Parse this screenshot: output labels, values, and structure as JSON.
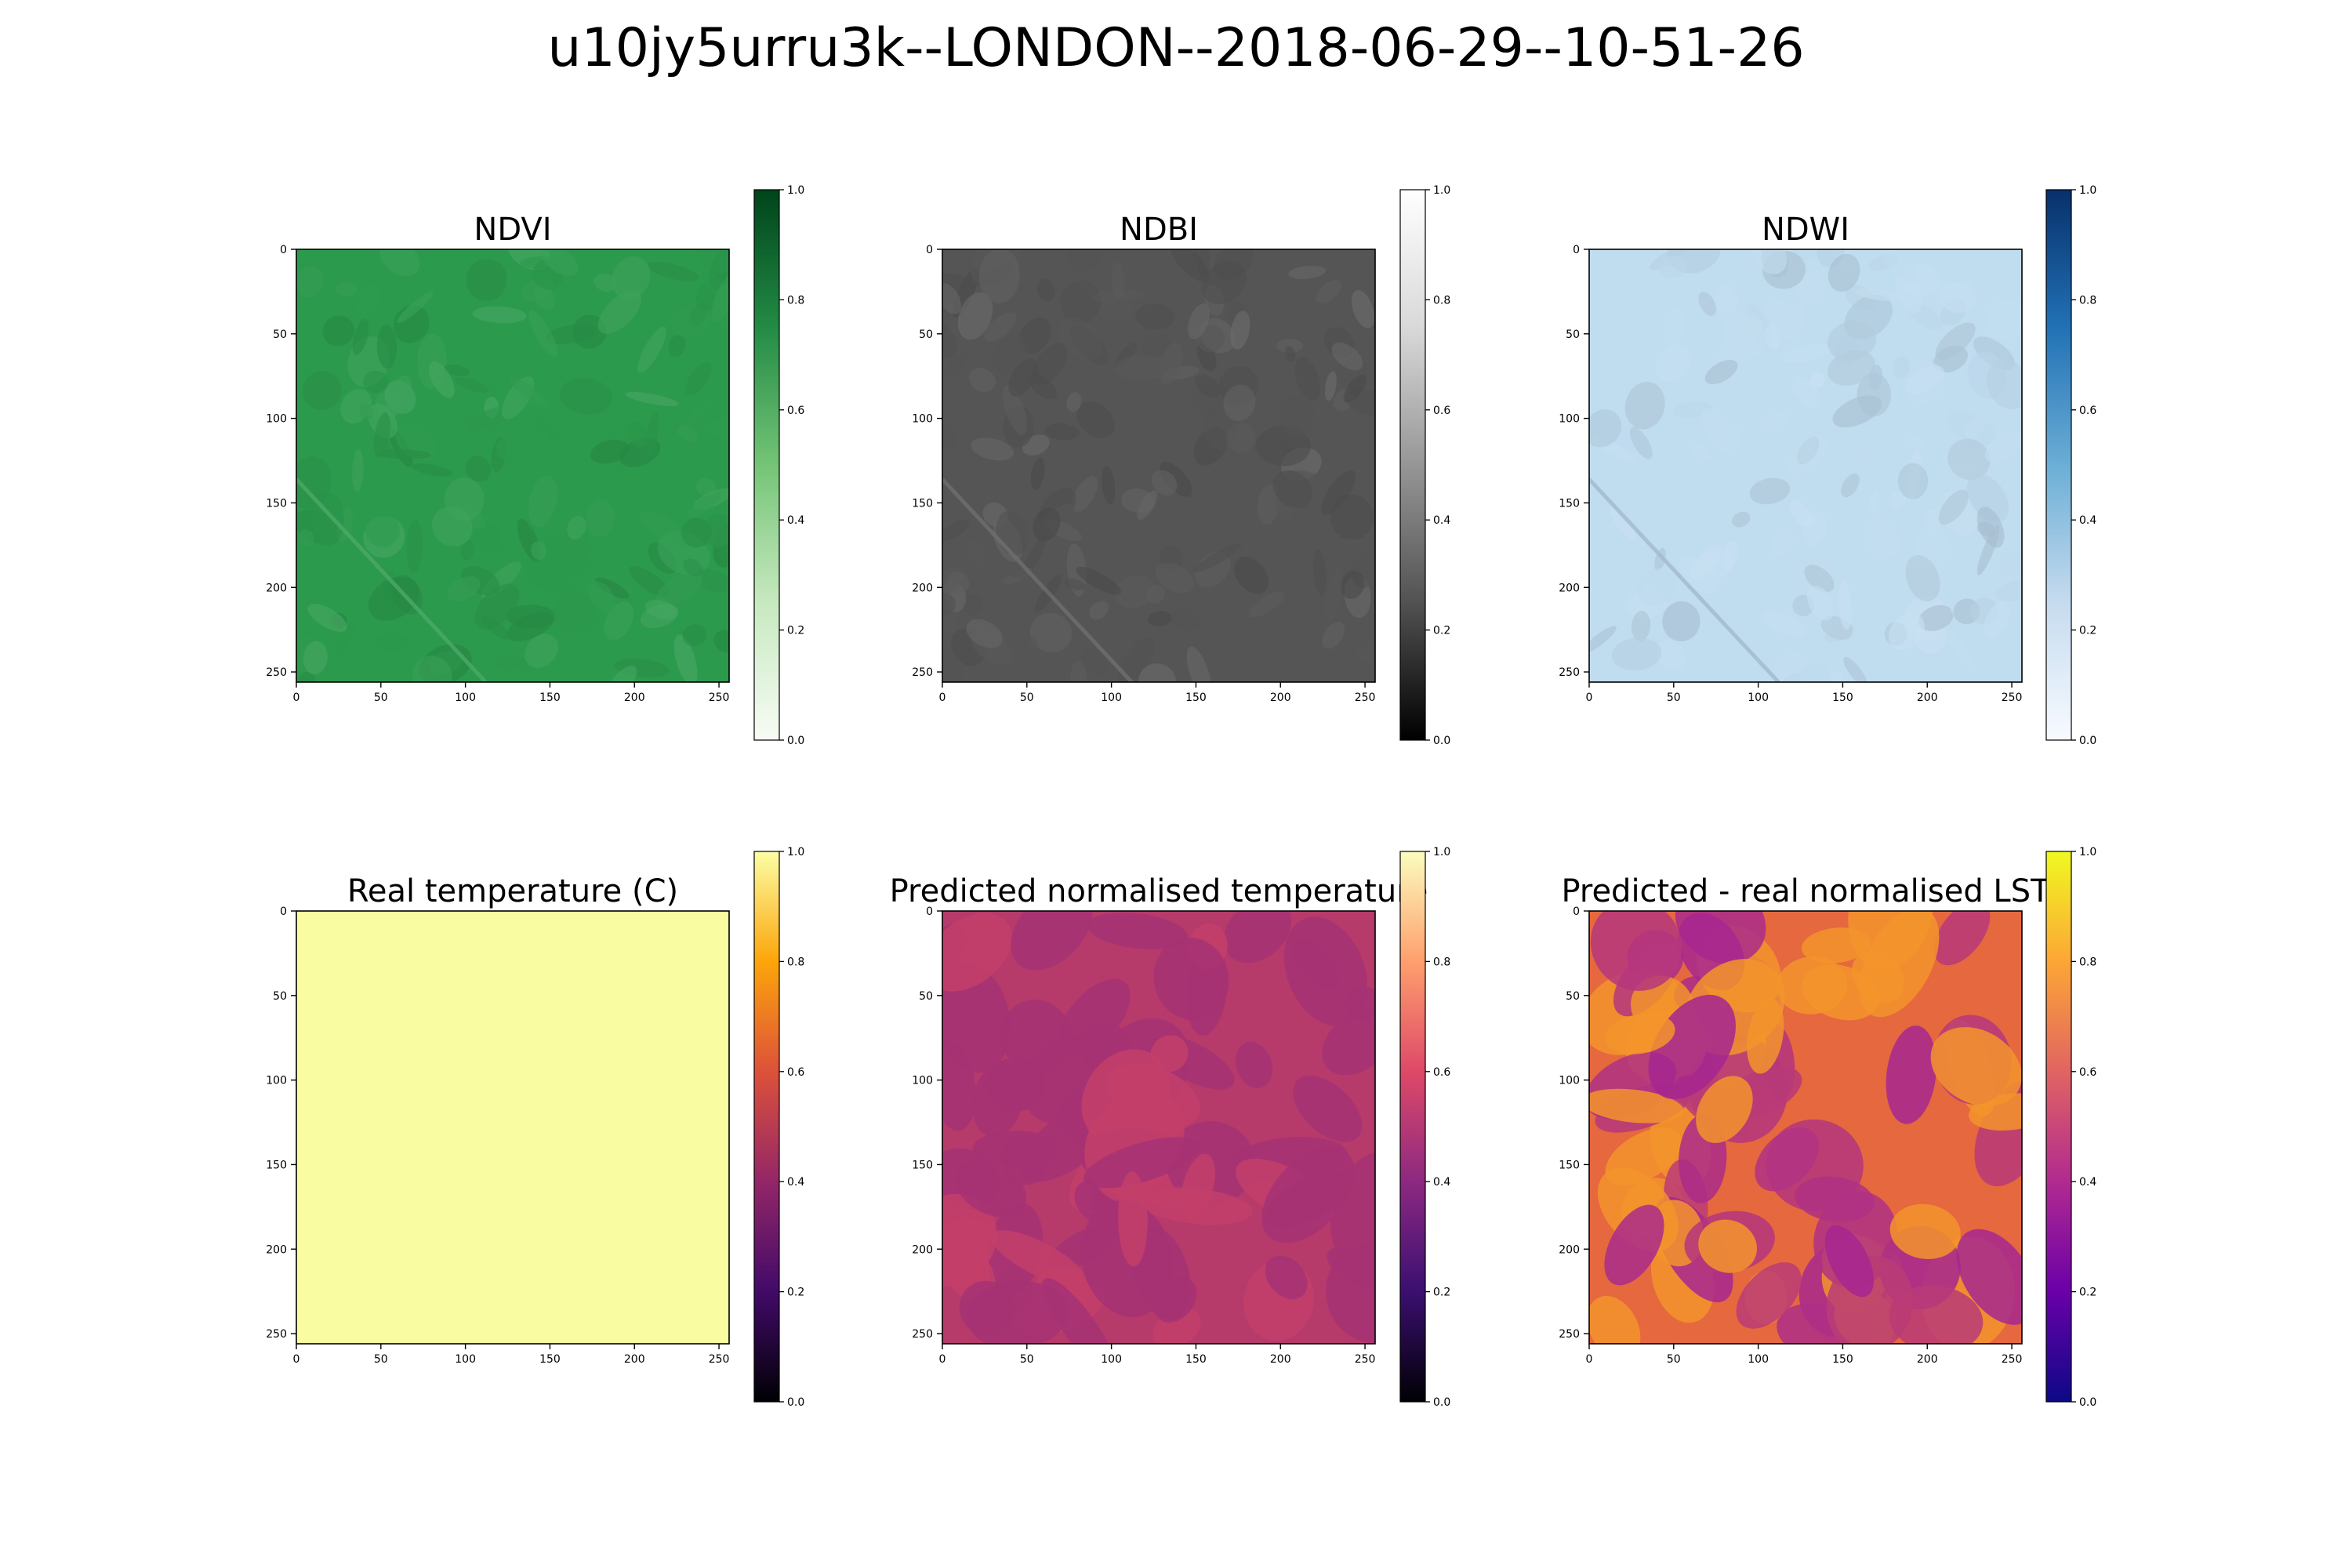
{
  "figure": {
    "suptitle": "u10jy5urru3k--LONDON--2018-06-29--10-51-26"
  },
  "chart_data": [
    {
      "type": "heatmap",
      "title": "NDVI",
      "colormap": "Greens",
      "x_ticks": [
        0,
        50,
        100,
        150,
        200,
        250
      ],
      "y_ticks": [
        0,
        50,
        100,
        150,
        200,
        250
      ],
      "xlim": [
        0,
        256
      ],
      "ylim": [
        256,
        0
      ],
      "colorbar": {
        "range": [
          0.0,
          1.0
        ],
        "ticks": [
          "0.0",
          "0.2",
          "0.4",
          "0.6",
          "0.8",
          "1.0"
        ]
      },
      "typical_value": 0.68,
      "colors": {
        "low": "#f7fcf5",
        "high": "#00441b",
        "image_mean": "#2c9a4d"
      }
    },
    {
      "type": "heatmap",
      "title": "NDBI",
      "colormap": "Greys_r",
      "x_ticks": [
        0,
        50,
        100,
        150,
        200,
        250
      ],
      "y_ticks": [
        0,
        50,
        100,
        150,
        200,
        250
      ],
      "xlim": [
        0,
        256
      ],
      "ylim": [
        256,
        0
      ],
      "colorbar": {
        "range": [
          0.0,
          1.0
        ],
        "ticks": [
          "0.0",
          "0.2",
          "0.4",
          "0.6",
          "0.8",
          "1.0"
        ]
      },
      "typical_value": 0.33,
      "colors": {
        "low": "#000000",
        "high": "#ffffff",
        "image_mean": "#555555"
      }
    },
    {
      "type": "heatmap",
      "title": "NDWI",
      "colormap": "Blues",
      "x_ticks": [
        0,
        50,
        100,
        150,
        200,
        250
      ],
      "y_ticks": [
        0,
        50,
        100,
        150,
        200,
        250
      ],
      "xlim": [
        0,
        256
      ],
      "ylim": [
        256,
        0
      ],
      "colorbar": {
        "range": [
          0.0,
          1.0
        ],
        "ticks": [
          "0.0",
          "0.2",
          "0.4",
          "0.6",
          "0.8",
          "1.0"
        ]
      },
      "typical_value": 0.27,
      "colors": {
        "low": "#f7fbff",
        "high": "#08306b",
        "image_mean": "#c0dcef"
      }
    },
    {
      "type": "heatmap",
      "title": "Real temperature (C)",
      "colormap": "inferno",
      "x_ticks": [
        0,
        50,
        100,
        150,
        200,
        250
      ],
      "y_ticks": [
        0,
        50,
        100,
        150,
        200,
        250
      ],
      "xlim": [
        0,
        256
      ],
      "ylim": [
        256,
        0
      ],
      "colorbar": {
        "range": [
          0.0,
          1.0
        ],
        "ticks": [
          "0.0",
          "0.2",
          "0.4",
          "0.6",
          "0.8",
          "1.0"
        ]
      },
      "typical_value": 1.0,
      "colors": {
        "low": "#000004",
        "high": "#fcfea4",
        "image_mean": "#f9fca1"
      }
    },
    {
      "type": "heatmap",
      "title": "Predicted normalised temperature",
      "colormap": "magma",
      "x_ticks": [
        0,
        50,
        100,
        150,
        200,
        250
      ],
      "y_ticks": [
        0,
        50,
        100,
        150,
        200,
        250
      ],
      "xlim": [
        0,
        256
      ],
      "ylim": [
        256,
        0
      ],
      "colorbar": {
        "range": [
          0.0,
          1.0
        ],
        "ticks": [
          "0.0",
          "0.2",
          "0.4",
          "0.6",
          "0.8",
          "1.0"
        ]
      },
      "typical_value": 0.55,
      "colors": {
        "low": "#000004",
        "high": "#fcfdbf",
        "image_mean": "#b63a6a"
      }
    },
    {
      "type": "heatmap",
      "title": "Predicted - real normalised LST",
      "colormap": "plasma",
      "x_ticks": [
        0,
        50,
        100,
        150,
        200,
        250
      ],
      "y_ticks": [
        0,
        50,
        100,
        150,
        200,
        250
      ],
      "xlim": [
        0,
        256
      ],
      "ylim": [
        256,
        0
      ],
      "colorbar": {
        "range": [
          0.0,
          1.0
        ],
        "ticks": [
          "0.0",
          "0.2",
          "0.4",
          "0.6",
          "0.8",
          "1.0"
        ]
      },
      "typical_value": 0.62,
      "colors": {
        "low": "#0d0887",
        "high": "#f0f921",
        "image_mean": "#e5683f"
      }
    }
  ]
}
